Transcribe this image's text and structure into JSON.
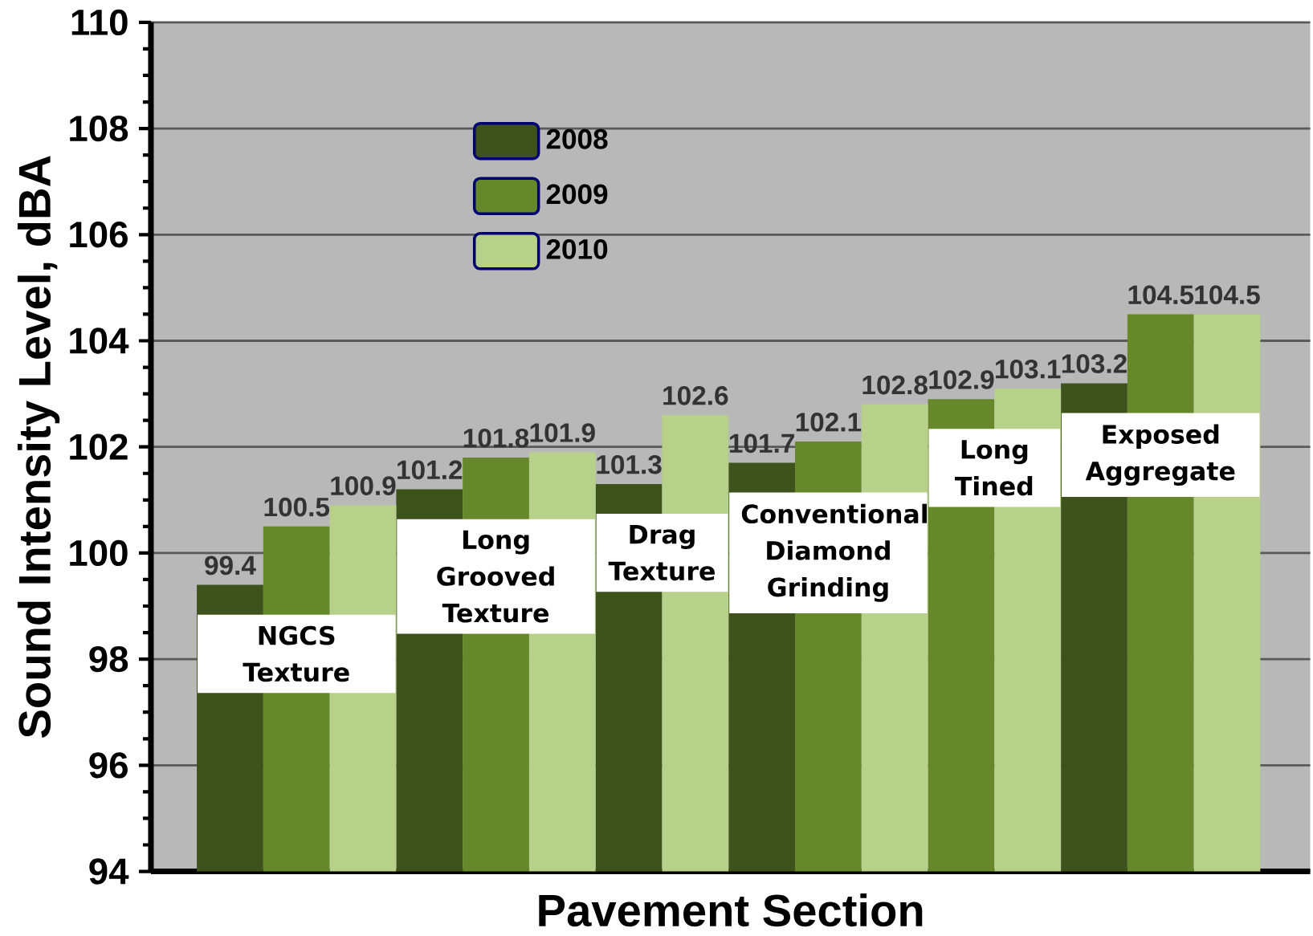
{
  "chart_data": {
    "type": "bar",
    "xlabel": "Pavement Section",
    "ylabel": "Sound Intensity Level, dBA",
    "categories": [
      "NGCS Texture",
      "Long Grooved Texture",
      "Drag Texture",
      "Conventional Diamond Grinding",
      "Long Tined",
      "Exposed Aggregate"
    ],
    "series": [
      {
        "name": "2008",
        "color": "#3d531b",
        "values": [
          99.4,
          101.2,
          101.3,
          101.7,
          null,
          103.2
        ]
      },
      {
        "name": "2009",
        "color": "#66882b",
        "values": [
          100.5,
          101.8,
          null,
          102.1,
          102.9,
          104.5
        ]
      },
      {
        "name": "2010",
        "color": "#b7d18a",
        "values": [
          100.9,
          101.9,
          102.6,
          102.8,
          103.1,
          104.5
        ]
      }
    ],
    "ylim": [
      94,
      110
    ],
    "yticks": [
      94,
      96,
      98,
      100,
      102,
      104,
      106,
      108,
      110
    ],
    "grid": "y",
    "legend": "top left",
    "data_labels": true
  }
}
